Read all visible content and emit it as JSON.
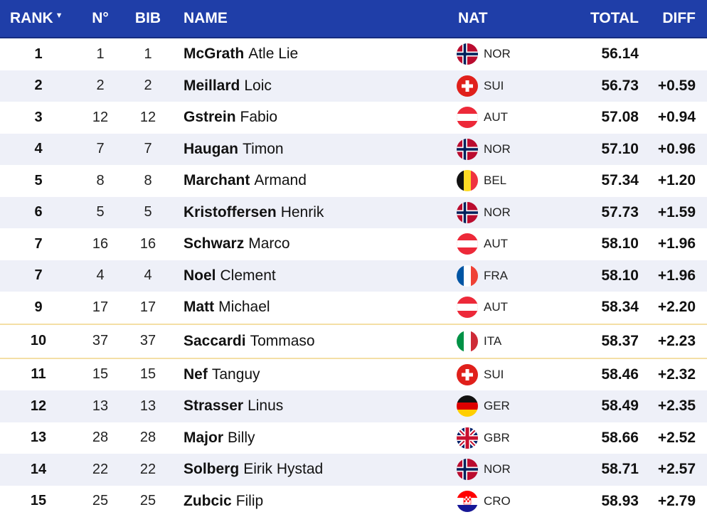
{
  "header": {
    "rank": "RANK",
    "no": "N°",
    "bib": "BIB",
    "name": "NAME",
    "nat": "NAT",
    "total": "TOTAL",
    "diff": "DIFF"
  },
  "colors": {
    "header_bg": "#1f3ea8",
    "row_alt": "#eef0f8",
    "highlight_border": "#f4dfa6"
  },
  "rows": [
    {
      "rank": "1",
      "no": "1",
      "bib": "1",
      "last": "McGrath",
      "first": "Atle Lie",
      "nat": "NOR",
      "flag": "nor-flag-icon",
      "total": "56.14",
      "diff": ""
    },
    {
      "rank": "2",
      "no": "2",
      "bib": "2",
      "last": "Meillard",
      "first": "Loic",
      "nat": "SUI",
      "flag": "sui-flag-icon",
      "total": "56.73",
      "diff": "+0.59"
    },
    {
      "rank": "3",
      "no": "12",
      "bib": "12",
      "last": "Gstrein",
      "first": "Fabio",
      "nat": "AUT",
      "flag": "aut-flag-icon",
      "total": "57.08",
      "diff": "+0.94"
    },
    {
      "rank": "4",
      "no": "7",
      "bib": "7",
      "last": "Haugan",
      "first": "Timon",
      "nat": "NOR",
      "flag": "nor-flag-icon",
      "total": "57.10",
      "diff": "+0.96"
    },
    {
      "rank": "5",
      "no": "8",
      "bib": "8",
      "last": "Marchant",
      "first": "Armand",
      "nat": "BEL",
      "flag": "bel-flag-icon",
      "total": "57.34",
      "diff": "+1.20"
    },
    {
      "rank": "6",
      "no": "5",
      "bib": "5",
      "last": "Kristoffersen",
      "first": "Henrik",
      "nat": "NOR",
      "flag": "nor-flag-icon",
      "total": "57.73",
      "diff": "+1.59"
    },
    {
      "rank": "7",
      "no": "16",
      "bib": "16",
      "last": "Schwarz",
      "first": "Marco",
      "nat": "AUT",
      "flag": "aut-flag-icon",
      "total": "58.10",
      "diff": "+1.96"
    },
    {
      "rank": "7",
      "no": "4",
      "bib": "4",
      "last": "Noel",
      "first": "Clement",
      "nat": "FRA",
      "flag": "fra-flag-icon",
      "total": "58.10",
      "diff": "+1.96"
    },
    {
      "rank": "9",
      "no": "17",
      "bib": "17",
      "last": "Matt",
      "first": "Michael",
      "nat": "AUT",
      "flag": "aut-flag-icon",
      "total": "58.34",
      "diff": "+2.20"
    },
    {
      "rank": "10",
      "no": "37",
      "bib": "37",
      "last": "Saccardi",
      "first": "Tommaso",
      "nat": "ITA",
      "flag": "ita-flag-icon",
      "total": "58.37",
      "diff": "+2.23",
      "highlight": true
    },
    {
      "rank": "11",
      "no": "15",
      "bib": "15",
      "last": "Nef",
      "first": "Tanguy",
      "nat": "SUI",
      "flag": "sui-flag-icon",
      "total": "58.46",
      "diff": "+2.32"
    },
    {
      "rank": "12",
      "no": "13",
      "bib": "13",
      "last": "Strasser",
      "first": "Linus",
      "nat": "GER",
      "flag": "ger-flag-icon",
      "total": "58.49",
      "diff": "+2.35"
    },
    {
      "rank": "13",
      "no": "28",
      "bib": "28",
      "last": "Major",
      "first": "Billy",
      "nat": "GBR",
      "flag": "gbr-flag-icon",
      "total": "58.66",
      "diff": "+2.52"
    },
    {
      "rank": "14",
      "no": "22",
      "bib": "22",
      "last": "Solberg",
      "first": "Eirik Hystad",
      "nat": "NOR",
      "flag": "nor-flag-icon",
      "total": "58.71",
      "diff": "+2.57"
    },
    {
      "rank": "15",
      "no": "25",
      "bib": "25",
      "last": "Zubcic",
      "first": "Filip",
      "nat": "CRO",
      "flag": "cro-flag-icon",
      "total": "58.93",
      "diff": "+2.79"
    }
  ]
}
